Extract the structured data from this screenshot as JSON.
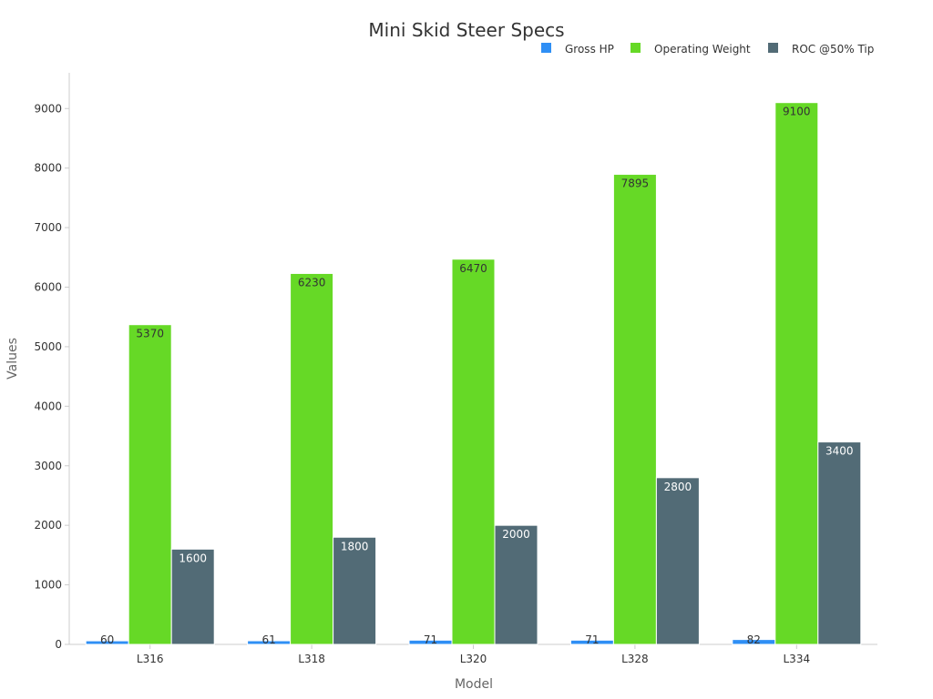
{
  "chart_data": {
    "type": "bar",
    "title": "Mini Skid Steer Specs",
    "xlabel": "Model",
    "ylabel": "Values",
    "categories": [
      "L316",
      "L318",
      "L320",
      "L328",
      "L334"
    ],
    "ylim": [
      0,
      9600
    ],
    "yticks": [
      0,
      1000,
      2000,
      3000,
      4000,
      5000,
      6000,
      7000,
      8000,
      9000
    ],
    "grid": false,
    "legend_position": "top-right",
    "series": [
      {
        "name": "Gross HP",
        "color": "#2f8ff5",
        "label_color": "#333333",
        "values": [
          60,
          61,
          71,
          71,
          82
        ]
      },
      {
        "name": "Operating Weight",
        "color": "#66d926",
        "label_color": "#333333",
        "values": [
          5370,
          6230,
          6470,
          7895,
          9100
        ]
      },
      {
        "name": "ROC @50% Tip",
        "color": "#526b76",
        "label_color": "#ffffff",
        "values": [
          1600,
          1800,
          2000,
          2800,
          3400
        ]
      }
    ]
  }
}
